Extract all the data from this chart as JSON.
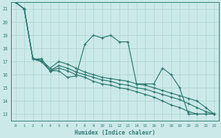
{
  "xlabel": "Humidex (Indice chaleur)",
  "bg_color": "#cce9e9",
  "line_color": "#2d7a72",
  "grid_color": "#b0d4d4",
  "xlim": [
    -0.5,
    23.5
  ],
  "ylim": [
    12.5,
    21.5
  ],
  "yticks": [
    13,
    14,
    15,
    16,
    17,
    18,
    19,
    20,
    21
  ],
  "xticks": [
    0,
    1,
    2,
    3,
    4,
    5,
    6,
    7,
    8,
    9,
    10,
    11,
    12,
    13,
    14,
    15,
    16,
    17,
    18,
    19,
    20,
    21,
    22,
    23
  ],
  "lines": [
    [
      21.5,
      21.0,
      17.2,
      17.2,
      16.3,
      16.3,
      15.8,
      15.9,
      18.3,
      19.0,
      18.8,
      19.0,
      18.5,
      18.5,
      15.3,
      15.3,
      15.3,
      16.5,
      16.0,
      15.0,
      13.0,
      13.0,
      13.0,
      13.0
    ],
    [
      21.5,
      21.0,
      17.2,
      17.1,
      16.5,
      17.0,
      16.8,
      16.5,
      16.2,
      16.0,
      15.8,
      15.7,
      15.6,
      15.5,
      15.3,
      15.2,
      15.0,
      14.8,
      14.6,
      14.4,
      14.2,
      14.0,
      13.5,
      13.0
    ],
    [
      21.5,
      21.0,
      17.2,
      17.0,
      16.3,
      16.7,
      16.5,
      16.2,
      16.0,
      15.8,
      15.6,
      15.5,
      15.3,
      15.2,
      15.0,
      14.9,
      14.7,
      14.5,
      14.3,
      14.1,
      13.8,
      13.5,
      13.2,
      13.0
    ],
    [
      21.5,
      21.0,
      17.2,
      17.0,
      16.3,
      16.5,
      16.3,
      16.0,
      15.8,
      15.5,
      15.3,
      15.2,
      15.0,
      14.9,
      14.7,
      14.5,
      14.3,
      14.0,
      13.7,
      13.5,
      13.2,
      13.0,
      13.0,
      13.0
    ]
  ]
}
